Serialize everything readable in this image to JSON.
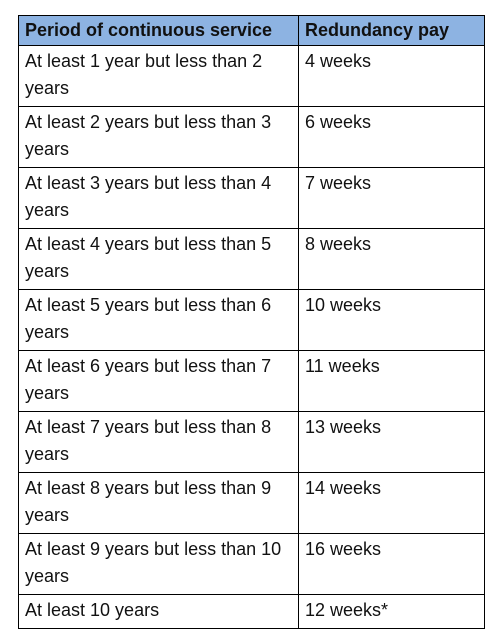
{
  "table": {
    "headers": [
      "Period of continuous service",
      "Redundancy pay"
    ],
    "rows": [
      {
        "period": "At least 1 year but less than 2 years",
        "pay": "4 weeks"
      },
      {
        "period": "At least 2 years but less than 3 years",
        "pay": "6 weeks"
      },
      {
        "period": "At least 3 years but less than 4 years",
        "pay": "7 weeks"
      },
      {
        "period": "At least 4 years but less than 5 years",
        "pay": "8 weeks"
      },
      {
        "period": "At least 5 years but less than 6 years",
        "pay": "10 weeks"
      },
      {
        "period": "At least 6 years but less than 7 years",
        "pay": "11 weeks"
      },
      {
        "period": "At least 7 years but less than 8 years",
        "pay": "13 weeks"
      },
      {
        "period": "At least 8 years but less than 9 years",
        "pay": "14 weeks"
      },
      {
        "period": "At least 9 years but less than 10 years",
        "pay": "16 weeks"
      },
      {
        "period": "At least 10 years",
        "pay": "12 weeks*"
      }
    ]
  },
  "colors": {
    "header_background": "#8db3e2",
    "border": "#000000"
  }
}
